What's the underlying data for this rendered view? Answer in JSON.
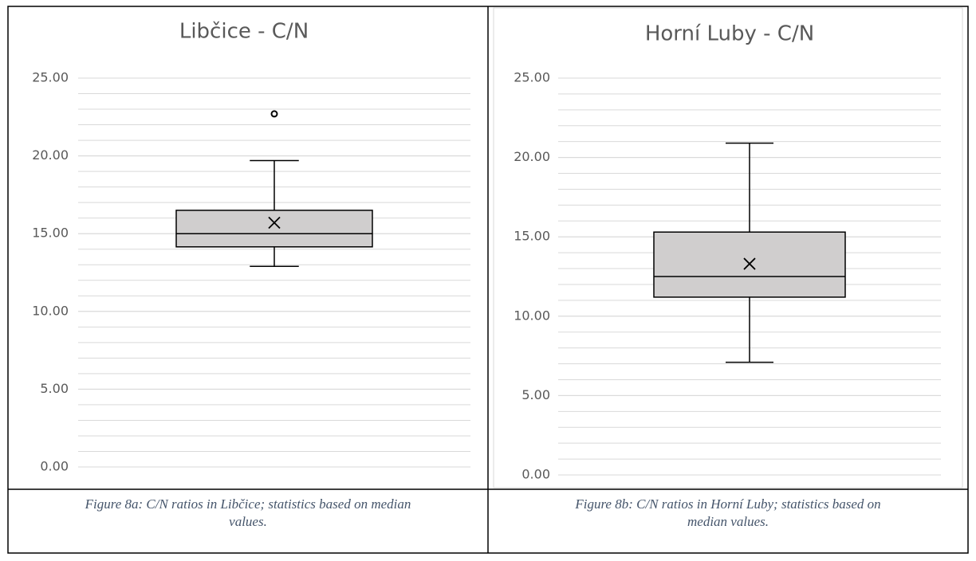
{
  "chart_data": [
    {
      "type": "box",
      "title": "Libčice - C/N",
      "boxes": [
        {
          "min": 12.9,
          "q1": 14.15,
          "median": 15.0,
          "q3": 16.5,
          "max": 19.7,
          "mean": 15.7,
          "outliers": [
            22.7
          ]
        }
      ],
      "color": "#d0cece",
      "ylim": [
        0,
        25
      ],
      "yticks": [
        {
          "value": 0,
          "label": "0.00"
        },
        {
          "value": 5,
          "label": "5.00"
        },
        {
          "value": 10,
          "label": "10.00"
        },
        {
          "value": 15,
          "label": "15.00"
        },
        {
          "value": 20,
          "label": "20.00"
        },
        {
          "value": 25,
          "label": "25.00"
        }
      ],
      "grid": true,
      "minor_grid_step": 1,
      "caption": [
        "Figure 8a: C/N ratios in Libčice; statistics based on median",
        "values."
      ]
    },
    {
      "type": "box",
      "title": "Horní Luby - C/N",
      "boxes": [
        {
          "min": 7.1,
          "q1": 11.2,
          "median": 12.5,
          "q3": 15.3,
          "max": 20.9,
          "mean": 13.3,
          "outliers": []
        }
      ],
      "color": "#d0cece",
      "ylim": [
        0,
        25
      ],
      "yticks": [
        {
          "value": 0,
          "label": "0.00"
        },
        {
          "value": 5,
          "label": "5.00"
        },
        {
          "value": 10,
          "label": "10.00"
        },
        {
          "value": 15,
          "label": "15.00"
        },
        {
          "value": 20,
          "label": "20.00"
        },
        {
          "value": 25,
          "label": "25.00"
        }
      ],
      "grid": true,
      "minor_grid_step": 1,
      "caption": [
        "Figure 8b: C/N ratios in Horní Luby; statistics based on",
        "median values."
      ]
    }
  ]
}
